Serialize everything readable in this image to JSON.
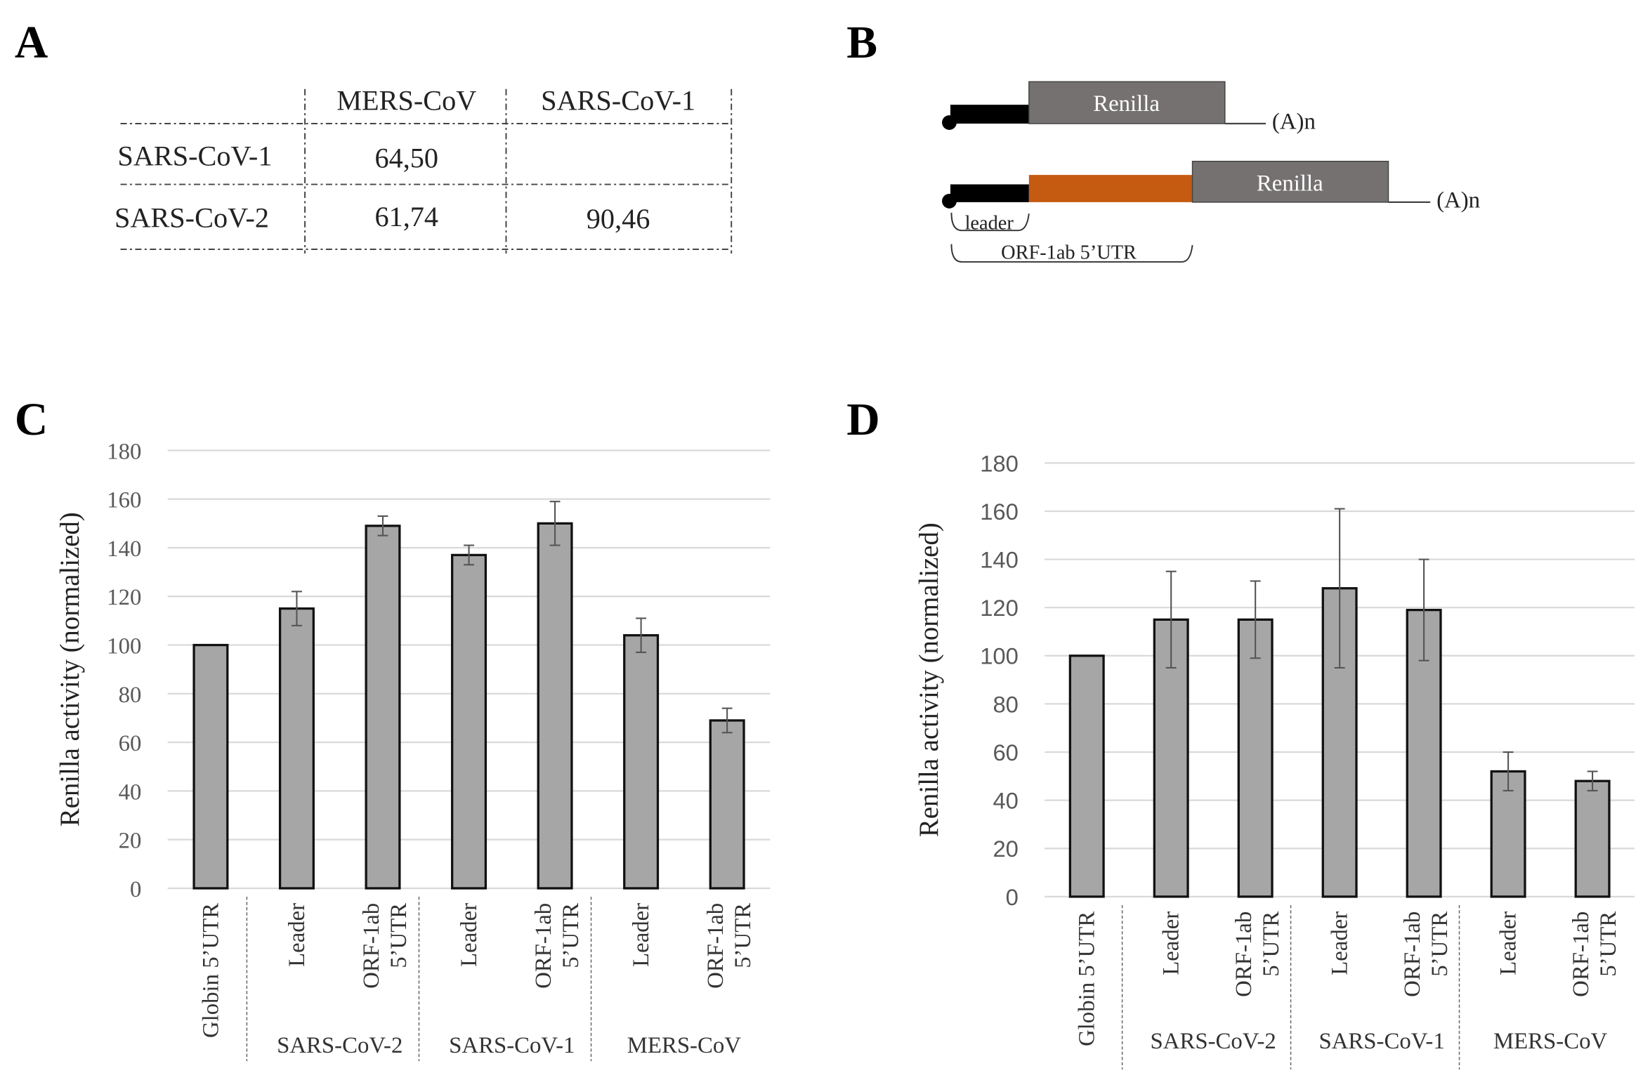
{
  "panels": {
    "a": "A",
    "b": "B",
    "c": "C",
    "d": "D"
  },
  "table": {
    "columns": [
      "MERS-CoV",
      "SARS-CoV-1"
    ],
    "rows": [
      {
        "label": "SARS-CoV-1",
        "values": [
          "64,50",
          ""
        ]
      },
      {
        "label": "SARS-CoV-2",
        "values": [
          "61,74",
          "90,46"
        ]
      }
    ]
  },
  "diagram": {
    "renilla": "Renilla",
    "polyA": "(A)n",
    "leader": "leader",
    "orf": "ORF-1ab 5’UTR",
    "colors": {
      "cap": "#000000",
      "utr": "#c55a11",
      "renilla": "#757171"
    }
  },
  "chart_data": [
    {
      "type": "bar",
      "panel": "C",
      "ylabel": "Renilla activity (normalized)",
      "ylim": [
        0,
        180
      ],
      "yticks": [
        0,
        20,
        40,
        60,
        80,
        100,
        120,
        140,
        160,
        180
      ],
      "grid": true,
      "bar_color": "#a6a6a6",
      "categories": [
        "Globin 5’UTR",
        "Leader",
        "ORF-1ab 5’UTR",
        "Leader",
        "ORF-1ab 5’UTR",
        "Leader",
        "ORF-1ab 5’UTR"
      ],
      "groups": [
        "SARS-CoV-2",
        "SARS-CoV-1",
        "MERS-CoV"
      ],
      "values": [
        100,
        115,
        149,
        137,
        150,
        104,
        69
      ],
      "errors": [
        0,
        7,
        4,
        4,
        9,
        7,
        5
      ]
    },
    {
      "type": "bar",
      "panel": "D",
      "ylabel": "Renilla activity (normalized)",
      "ylim": [
        0,
        180
      ],
      "yticks": [
        0,
        20,
        40,
        60,
        80,
        100,
        120,
        140,
        160,
        180
      ],
      "grid": true,
      "bar_color": "#a6a6a6",
      "categories": [
        "Globin 5’UTR",
        "Leader",
        "ORF-1ab 5’UTR",
        "Leader",
        "ORF-1ab 5’UTR",
        "Leader",
        "ORF-1ab 5’UTR"
      ],
      "groups": [
        "SARS-CoV-2",
        "SARS-CoV-1",
        "MERS-CoV"
      ],
      "values": [
        100,
        115,
        115,
        128,
        119,
        52,
        48
      ],
      "errors": [
        0,
        20,
        16,
        33,
        21,
        8,
        4
      ]
    }
  ]
}
